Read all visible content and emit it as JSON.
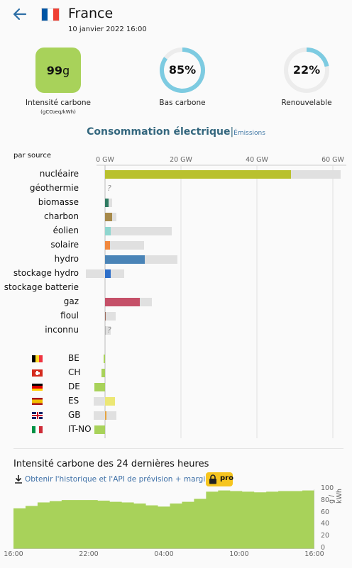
{
  "header": {
    "title": "France",
    "datetime": "10 janvier 2022 16:00",
    "back_icon": "arrow-left-icon",
    "flag_colors": [
      "#0055a4",
      "#ffffff",
      "#ef4135"
    ]
  },
  "kpis": {
    "intensity": {
      "value": "99",
      "unit": "g",
      "label": "Intensité carbone",
      "sublabel": "(gCO₂eq/kWh)",
      "color": "#a8d25a"
    },
    "low_carbon": {
      "percent": "85%",
      "value": 85,
      "label": "Bas carbone",
      "color": "#7dcbe1"
    },
    "renewable": {
      "percent": "22%",
      "value": 22,
      "label": "Renouvelable",
      "color": "#7dcbe1"
    }
  },
  "tabs": {
    "active": "Consommation électrique",
    "separator": "|",
    "other": "Émissions"
  },
  "breakdown": {
    "heading": "par source",
    "axis_ticks": [
      "0 GW",
      "20 GW",
      "40 GW",
      "60 GW"
    ],
    "axis_values": [
      0,
      20,
      40,
      60
    ],
    "axis_color": "#666666",
    "sources": [
      {
        "label": "nucléaire",
        "production": 49,
        "capacity": 62,
        "color": "#b9c12e"
      },
      {
        "label": "géothermie",
        "production": null,
        "capacity": null,
        "unknown": "?",
        "color": "#cccccc"
      },
      {
        "label": "biomasse",
        "production": 1.0,
        "capacity": 1.8,
        "color": "#2f7a61"
      },
      {
        "label": "charbon",
        "production": 1.9,
        "capacity": 3.0,
        "color": "#a6894a"
      },
      {
        "label": "éolien",
        "production": 1.5,
        "capacity": 17.5,
        "color": "#8fd6cf"
      },
      {
        "label": "solaire",
        "production": 1.3,
        "capacity": 10.3,
        "color": "#f0883e"
      },
      {
        "label": "hydro",
        "production": 10.5,
        "capacity": 19,
        "color": "#4a84b7"
      },
      {
        "label": "stockage hydro",
        "production": 1.5,
        "capacity": 5,
        "storage_capacity": -5,
        "color": "#2e6fc9"
      },
      {
        "label": "stockage batterie",
        "production": null,
        "capacity": null,
        "color": "#cccccc"
      },
      {
        "label": "gaz",
        "production": 9.2,
        "capacity": 12.3,
        "color": "#c55068"
      },
      {
        "label": "fioul",
        "production": 0.25,
        "capacity": 2.8,
        "color": "#9b6a5b"
      },
      {
        "label": "inconnu",
        "production": 0.1,
        "capacity": 1.5,
        "unknown": "?",
        "color": "#b3b3b3"
      }
    ],
    "exchanges": [
      {
        "code": "BE",
        "value": -0.4,
        "capacity": -0.4,
        "color": "#a8d25a",
        "flag": [
          "#000000",
          "#fdda24",
          "#ef3340"
        ],
        "flag_type": "vertical"
      },
      {
        "code": "CH",
        "value": -1.0,
        "capacity": -1.0,
        "color": "#a8d25a",
        "flag": [
          "#d52b1e"
        ],
        "flag_type": "swiss"
      },
      {
        "code": "DE",
        "value": -2.8,
        "capacity": -2.8,
        "color": "#a8d25a",
        "flag": [
          "#000000",
          "#dd0000",
          "#ffce00"
        ],
        "flag_type": "horizontal"
      },
      {
        "code": "ES",
        "value": 2.6,
        "capacity": -3.0,
        "color": "#ece774",
        "flag": [
          "#aa151b",
          "#f1bf00",
          "#aa151b"
        ],
        "flag_type": "spain"
      },
      {
        "code": "GB",
        "value": 0.3,
        "capacity": -3.0,
        "capacity_pos": 3.0,
        "color": "#e6a33e",
        "flag": [
          "#012169",
          "#ffffff",
          "#c8102e"
        ],
        "flag_type": "uk"
      },
      {
        "code": "IT-NO",
        "value": -2.8,
        "capacity": -2.8,
        "color": "#a8d25a",
        "flag": [
          "#009246",
          "#ffffff",
          "#ce2b37"
        ],
        "flag_type": "vertical"
      }
    ]
  },
  "history": {
    "title": "Intensité carbone des 24 dernières heures",
    "link_text": "Obtenir l'historique et l'API de prévision + marginal",
    "download_icon": "download-icon",
    "lock_icon": "lock-icon",
    "pro_label": "pro",
    "x_ticks": [
      "16:00",
      "22:00",
      "04:00",
      "10:00",
      "16:00"
    ],
    "y_ticks": [
      "100",
      "80",
      "60",
      "40",
      "20",
      "0"
    ],
    "y_unit": "g / kWh",
    "fill_color": "#a8d25a",
    "values": [
      68,
      72,
      78,
      80,
      82,
      82,
      82,
      81,
      79,
      78,
      76,
      73,
      71,
      76,
      79,
      84,
      96,
      98,
      97,
      96,
      95,
      96,
      97,
      97,
      98,
      99
    ]
  }
}
